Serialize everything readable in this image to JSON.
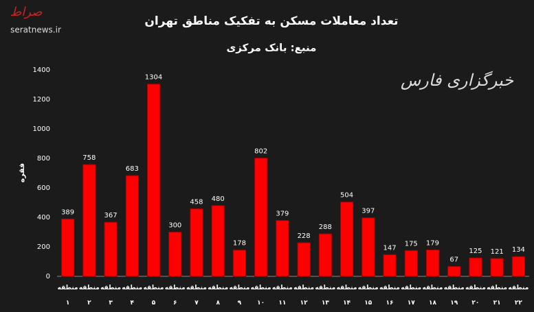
{
  "chart_data": {
    "type": "bar",
    "title": "تعداد معاملات مسکن به تفکیک مناطق تهران",
    "subtitle": "منبع: بانک مرکزی",
    "y_label": "فقره",
    "categories": [
      "منطقه\n۱",
      "منطقه\n۲",
      "منطقه\n۳",
      "منطقه\n۴",
      "منطقه\n۵",
      "منطقه\n۶",
      "منطقه\n۷",
      "منطقه\n۸",
      "منطقه\n۹",
      "منطقه\n۱۰",
      "منطقه\n۱۱",
      "منطقه\n۱۲",
      "منطقه\n۱۳",
      "منطقه\n۱۴",
      "منطقه\n۱۵",
      "منطقه\n۱۶",
      "منطقه\n۱۷",
      "منطقه\n۱۸",
      "منطقه\n۱۹",
      "منطقه\n۲۰",
      "منطقه\n۲۱",
      "منطقه\n۲۲"
    ],
    "values": [
      389,
      758,
      367,
      683,
      1304,
      300,
      458,
      480,
      178,
      802,
      379,
      228,
      288,
      504,
      397,
      147,
      175,
      179,
      67,
      125,
      121,
      134
    ],
    "color": "#ff0000",
    "ylim": [
      0,
      1400
    ],
    "yticks": [
      0,
      200,
      400,
      600,
      800,
      1000,
      1200,
      1400
    ],
    "grid": false,
    "value_labels_shown": true
  },
  "logos": {
    "serat": "صراط",
    "serat_url": "seratnews.ir",
    "fars": "خبرگزاری فارس"
  }
}
